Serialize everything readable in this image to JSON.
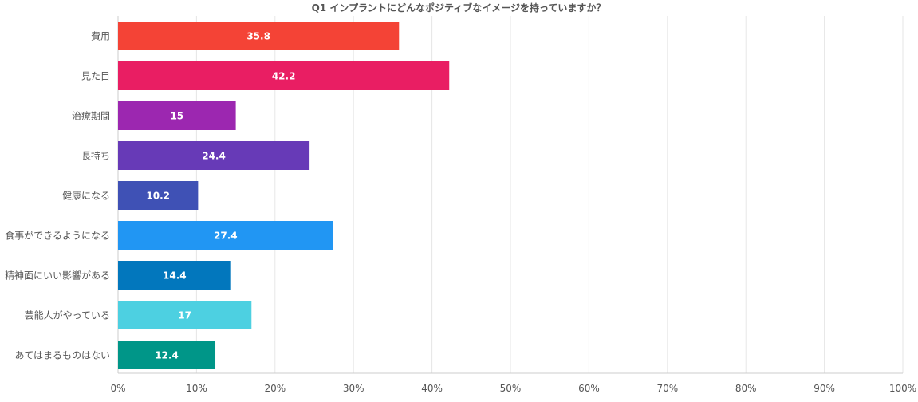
{
  "chart_data": {
    "type": "bar",
    "orientation": "horizontal",
    "title": "Q1 インプラントにどんなポジティブなイメージを持っていますか？",
    "xlabel": "",
    "ylabel": "",
    "xlim": [
      0,
      100
    ],
    "grid": true,
    "legend": "none",
    "categories": [
      "費用",
      "見た目",
      "治療期間",
      "長持ち",
      "健康になる",
      "食事ができるようになる",
      "精神面にいい影響がある",
      "芸能人がやっている",
      "あてはまるものはない"
    ],
    "values": [
      35.8,
      42.2,
      15,
      24.4,
      10.2,
      27.4,
      14.4,
      17,
      12.4
    ],
    "value_labels": [
      "35.8",
      "42.2",
      "15",
      "24.4",
      "10.2",
      "27.4",
      "14.4",
      "17",
      "12.4"
    ],
    "bar_colors": [
      "#f44336",
      "#e91e63",
      "#9c27b0",
      "#673ab7",
      "#3f51b5",
      "#2196f3",
      "#0277bd",
      "#4dd0e1",
      "#009688"
    ],
    "x_ticks": [
      0,
      10,
      20,
      30,
      40,
      50,
      60,
      70,
      80,
      90,
      100
    ],
    "x_tick_labels": [
      "0%",
      "10%",
      "20%",
      "30%",
      "40%",
      "50%",
      "60%",
      "70%",
      "80%",
      "90%",
      "100%"
    ]
  },
  "colors": {
    "title": "#555555",
    "axis_text": "#555555",
    "grid": "#e6e6e6",
    "axis": "#cccccc",
    "value_label": "#ffffff"
  }
}
